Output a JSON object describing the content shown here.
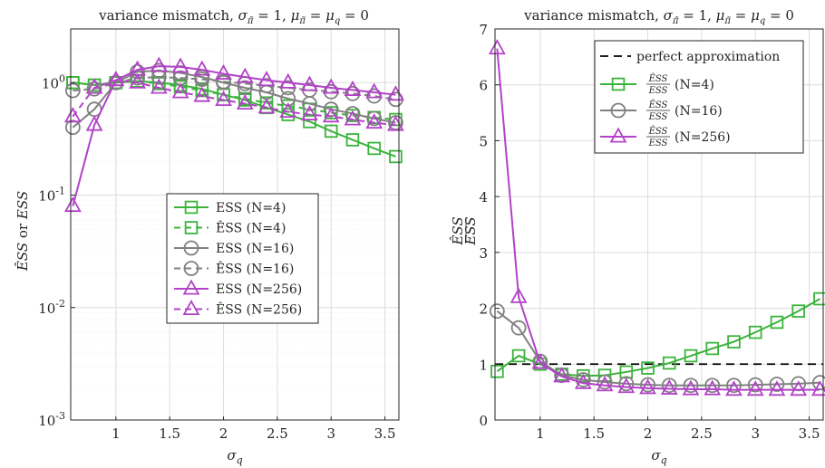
{
  "figure": {
    "left_title": "variance mismatch, σπ̃ = 1, μπ̃ = μq = 0",
    "right_title": "variance mismatch, σπ̃ = 1, μπ̃ = μq = 0"
  },
  "chart_data": [
    {
      "type": "line",
      "title": "variance mismatch, σπ̃ = 1, μπ̃ = μq = 0",
      "xlabel": "σq",
      "ylabel": "ÊSS or ESS",
      "xlim": [
        0.58,
        3.63
      ],
      "ylim": [
        0.001,
        3
      ],
      "yscale": "log",
      "grid": true,
      "legend_position": "center-right",
      "x_ticks": [
        "1",
        "1.5",
        "2",
        "2.5",
        "3",
        "3.5"
      ],
      "y_ticks": [
        "10^0",
        "10^-1",
        "10^-2",
        "10^-3"
      ],
      "x": [
        0.6,
        0.8,
        1.0,
        1.2,
        1.4,
        1.6,
        1.8,
        2.0,
        2.2,
        2.4,
        2.6,
        2.8,
        3.0,
        3.2,
        3.4,
        3.6
      ],
      "series": [
        {
          "name": "ESS (N=4)",
          "color": "#3bb33b",
          "marker": "square",
          "dash": "solid",
          "values": [
            1.0,
            0.95,
            1.0,
            1.03,
            1.0,
            0.95,
            0.88,
            0.78,
            0.7,
            0.6,
            0.52,
            0.45,
            0.37,
            0.31,
            0.26,
            0.22
          ]
        },
        {
          "name": "ÊSS (N=4)",
          "color": "#3bb33b",
          "marker": "square",
          "dash": "dashed",
          "values": [
            1.0,
            0.95,
            1.0,
            1.03,
            0.98,
            0.92,
            0.85,
            0.78,
            0.72,
            0.66,
            0.62,
            0.58,
            0.54,
            0.51,
            0.49,
            0.47
          ]
        },
        {
          "name": "ESS (N=16)",
          "color": "#808080",
          "marker": "circle",
          "dash": "solid",
          "values": [
            0.4,
            0.58,
            1.0,
            1.25,
            1.28,
            1.22,
            1.12,
            1.0,
            0.9,
            0.82,
            0.72,
            0.65,
            0.58,
            0.53,
            0.48,
            0.44
          ]
        },
        {
          "name": "ÊSS (N=16)",
          "color": "#808080",
          "marker": "circle",
          "dash": "dashed",
          "values": [
            0.85,
            0.88,
            1.0,
            1.1,
            1.12,
            1.1,
            1.07,
            1.02,
            0.98,
            0.94,
            0.9,
            0.86,
            0.83,
            0.8,
            0.76,
            0.71
          ]
        },
        {
          "name": "ESS (N=256)",
          "color": "#b242c8",
          "marker": "triangle",
          "dash": "solid",
          "values": [
            0.08,
            0.42,
            1.05,
            1.3,
            1.4,
            1.38,
            1.3,
            1.2,
            1.12,
            1.05,
            1.0,
            0.95,
            0.9,
            0.86,
            0.82,
            0.78
          ]
        },
        {
          "name": "ÊSS (N=256)",
          "color": "#b242c8",
          "marker": "triangle",
          "dash": "dashed",
          "values": [
            0.5,
            0.9,
            1.05,
            1.0,
            0.9,
            0.82,
            0.76,
            0.7,
            0.65,
            0.6,
            0.55,
            0.52,
            0.5,
            0.47,
            0.44,
            0.42
          ]
        }
      ]
    },
    {
      "type": "line",
      "title": "variance mismatch, σπ̃ = 1, μπ̃ = μq = 0",
      "xlabel": "σq",
      "ylabel": "ÊSS / ESS",
      "xlim": [
        0.58,
        3.63
      ],
      "ylim": [
        0,
        7
      ],
      "grid": true,
      "legend_position": "top-right",
      "x_ticks": [
        "1",
        "1.5",
        "2",
        "2.5",
        "3",
        "3.5"
      ],
      "y_ticks": [
        "0",
        "1",
        "2",
        "3",
        "4",
        "5",
        "6",
        "7"
      ],
      "x": [
        0.6,
        0.8,
        1.0,
        1.2,
        1.4,
        1.6,
        1.8,
        2.0,
        2.2,
        2.4,
        2.6,
        2.8,
        3.0,
        3.2,
        3.4,
        3.6
      ],
      "reference": {
        "name": "perfect approximation",
        "value": 1,
        "color": "#000000",
        "dash": "dashed"
      },
      "series": [
        {
          "name": "ÊSS/ESS (N=4)",
          "color": "#3bb33b",
          "marker": "square",
          "values": [
            0.87,
            1.15,
            1.0,
            0.82,
            0.79,
            0.8,
            0.86,
            0.93,
            1.02,
            1.15,
            1.28,
            1.4,
            1.57,
            1.75,
            1.95,
            2.17
          ]
        },
        {
          "name": "ÊSS/ESS (N=16)",
          "color": "#808080",
          "marker": "circle",
          "values": [
            1.95,
            1.65,
            1.05,
            0.8,
            0.72,
            0.68,
            0.65,
            0.63,
            0.62,
            0.62,
            0.62,
            0.62,
            0.63,
            0.64,
            0.65,
            0.67
          ]
        },
        {
          "name": "ÊSS/ESS (N=256)",
          "color": "#b242c8",
          "marker": "triangle",
          "values": [
            6.65,
            2.2,
            1.02,
            0.78,
            0.66,
            0.62,
            0.59,
            0.57,
            0.56,
            0.55,
            0.55,
            0.54,
            0.54,
            0.54,
            0.54,
            0.54
          ]
        }
      ]
    }
  ]
}
